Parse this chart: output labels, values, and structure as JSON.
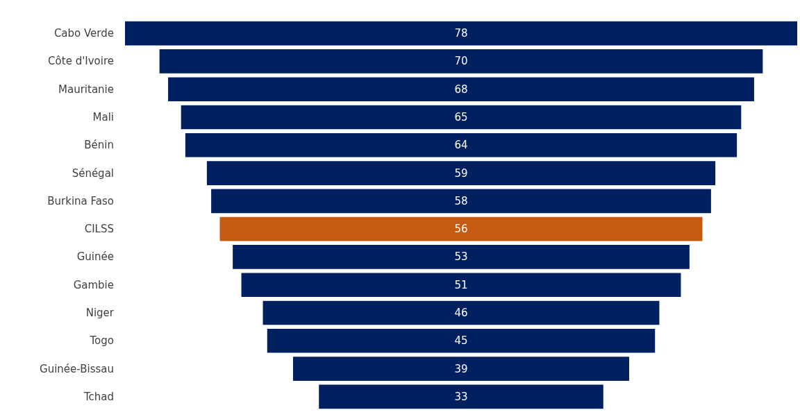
{
  "chart_data": {
    "type": "other",
    "categories": [
      "Cabo Verde",
      "Côte d'Ivoire",
      "Mauritanie",
      "Mali",
      "Bénin",
      "Sénégal",
      "Burkina Faso",
      "CILSS",
      "Guinée",
      "Gambie",
      "Niger",
      "Togo",
      "Guinée-Bissau",
      "Tchad"
    ],
    "values": [
      78,
      70,
      68,
      65,
      64,
      59,
      58,
      56,
      53,
      51,
      46,
      45,
      39,
      33
    ],
    "colors": [
      "#002060",
      "#002060",
      "#002060",
      "#002060",
      "#002060",
      "#002060",
      "#002060",
      "#c55a11",
      "#002060",
      "#002060",
      "#002060",
      "#002060",
      "#002060",
      "#002060"
    ],
    "data_labels": true
  }
}
